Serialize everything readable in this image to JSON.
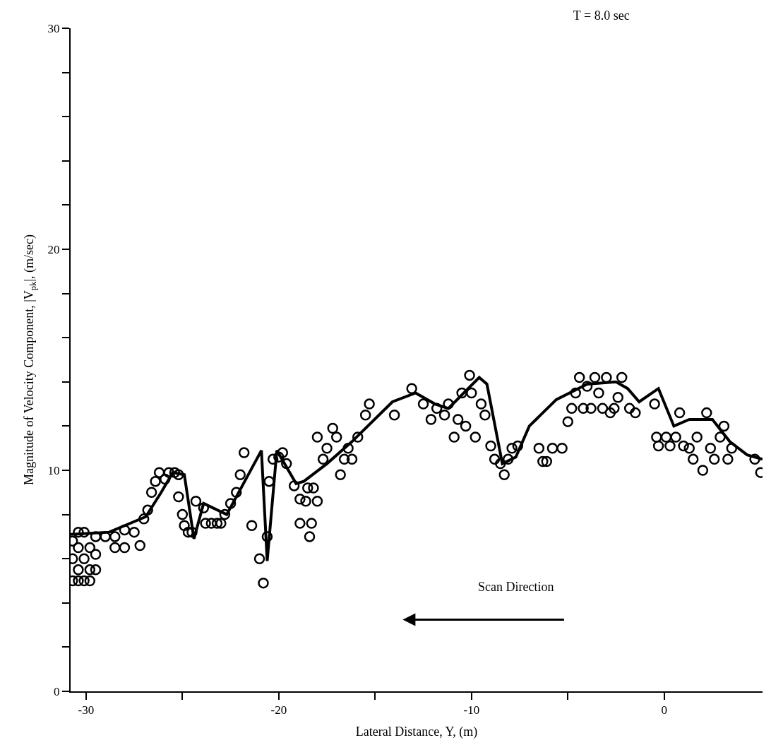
{
  "chart_data": {
    "type": "scatter",
    "title": "T = 8.0 sec",
    "xlabel": "Lateral Distance, Y, (m)",
    "ylabel": "Magnitude of Velocity Component, |V$_{pk}$|, (m/sec)",
    "annotations": [
      "Scan Direction"
    ],
    "xlim": [
      -30.8,
      5.1
    ],
    "ylim": [
      0,
      30
    ],
    "xticks": [
      -30,
      {
        "value": -25,
        "label": null
      },
      -20,
      {
        "value": -15,
        "label": null
      },
      -10,
      {
        "value": -5,
        "label": null
      },
      0
    ],
    "yticks": [
      0,
      {
        "value": 2,
        "label": null
      },
      {
        "value": 4,
        "label": null
      },
      {
        "value": 6,
        "label": null
      },
      {
        "value": 8,
        "label": null
      },
      10,
      {
        "value": 12,
        "label": null
      },
      {
        "value": 14,
        "label": null
      },
      {
        "value": 16,
        "label": null
      },
      {
        "value": 18,
        "label": null
      },
      20,
      {
        "value": 22,
        "label": null
      },
      {
        "value": 24,
        "label": null
      },
      {
        "value": 26,
        "label": null
      },
      {
        "value": 28,
        "label": null
      },
      30
    ],
    "legend": false,
    "series": [
      {
        "marker": "circle",
        "color": "#000000",
        "x": [
          -30.7,
          -30.7,
          -30.7,
          -30.4,
          -30.4,
          -30.4,
          -30.4,
          -30.1,
          -30.1,
          -30.1,
          -29.8,
          -29.8,
          -29.8,
          -29.5,
          -29.5,
          -29.5,
          -29.0,
          -28.5,
          -28.5,
          -28.0,
          -28.0,
          -27.5,
          -27.2,
          -27.0,
          -26.8,
          -26.6,
          -26.4,
          -26.2,
          -25.9,
          -25.7,
          -25.4,
          -25.2,
          -25.2,
          -25.0,
          -24.9,
          -24.7,
          -24.5,
          -24.3,
          -23.9,
          -23.8,
          -23.5,
          -23.2,
          -23.0,
          -22.8,
          -22.5,
          -22.2,
          -22.0,
          -21.8,
          -21.4,
          -21.0,
          -20.8,
          -20.6,
          -20.5,
          -20.3,
          -20.0,
          -19.8,
          -19.6,
          -19.2,
          -18.9,
          -18.9,
          -18.6,
          -18.5,
          -18.4,
          -18.3,
          -18.2,
          -18.0,
          -18.0,
          -17.7,
          -17.5,
          -17.2,
          -17.0,
          -16.8,
          -16.6,
          -16.4,
          -16.2,
          -15.9,
          -15.5,
          -15.3,
          -14.0,
          -13.1,
          -12.5,
          -12.1,
          -11.8,
          -11.4,
          -11.2,
          -10.9,
          -10.7,
          -10.5,
          -10.3,
          -10.1,
          -10.0,
          -9.8,
          -9.5,
          -9.3,
          -9.0,
          -8.8,
          -8.5,
          -8.3,
          -8.1,
          -7.9,
          -7.6,
          -6.5,
          -6.3,
          -6.1,
          -5.8,
          -5.3,
          -5.0,
          -4.8,
          -4.6,
          -4.4,
          -4.2,
          -4.0,
          -3.8,
          -3.6,
          -3.4,
          -3.2,
          -3.0,
          -2.8,
          -2.6,
          -2.4,
          -2.2,
          -1.8,
          -1.5,
          -0.5,
          -0.4,
          -0.3,
          0.1,
          0.3,
          0.6,
          0.8,
          1.0,
          1.3,
          1.5,
          1.7,
          2.0,
          2.2,
          2.4,
          2.6,
          2.9,
          3.1,
          3.3,
          3.5,
          4.7,
          5.0
        ],
        "values": [
          5.0,
          6.0,
          6.8,
          5.0,
          5.5,
          6.5,
          7.2,
          5.0,
          6.0,
          7.2,
          5.0,
          5.5,
          6.5,
          5.5,
          6.2,
          7.0,
          7.0,
          7.0,
          6.5,
          6.5,
          7.3,
          7.2,
          6.6,
          7.8,
          8.2,
          9.0,
          9.5,
          9.9,
          9.6,
          9.9,
          9.9,
          9.8,
          8.8,
          8.0,
          7.5,
          7.2,
          7.2,
          8.6,
          8.3,
          7.6,
          7.6,
          7.6,
          7.6,
          8.0,
          8.5,
          9.0,
          9.8,
          10.8,
          7.5,
          6.0,
          4.9,
          7.0,
          9.5,
          10.5,
          10.6,
          10.8,
          10.3,
          9.3,
          8.7,
          7.6,
          8.6,
          9.2,
          7.0,
          7.6,
          9.2,
          8.6,
          11.5,
          10.5,
          11.0,
          11.9,
          11.5,
          9.8,
          10.5,
          11.0,
          10.5,
          11.5,
          12.5,
          13.0,
          12.5,
          13.7,
          13.0,
          12.3,
          12.8,
          12.5,
          13.0,
          11.5,
          12.3,
          13.5,
          12.0,
          14.3,
          13.5,
          11.5,
          13.0,
          12.5,
          11.1,
          10.5,
          10.3,
          9.8,
          10.5,
          11.0,
          11.1,
          11.0,
          10.4,
          10.4,
          11.0,
          11.0,
          12.2,
          12.8,
          13.5,
          14.2,
          12.8,
          13.8,
          12.8,
          14.2,
          13.5,
          12.8,
          14.2,
          12.6,
          12.8,
          13.3,
          14.2,
          12.8,
          12.6,
          13.0,
          11.5,
          11.1,
          11.5,
          11.1,
          11.5,
          12.6,
          11.1,
          11.0,
          10.5,
          11.5,
          10.0,
          12.6,
          11.0,
          10.5,
          11.5,
          12.0,
          10.5,
          11.0,
          10.5,
          9.9
        ]
      },
      {
        "type": "line",
        "marker": "none",
        "line_style": "solid",
        "color": "#000000",
        "x": [
          -30.8,
          -28.8,
          -26.9,
          -26.1,
          -25.5,
          -24.9,
          -24.4,
          -23.9,
          -22.7,
          -20.9,
          -20.6,
          -20.1,
          -19.1,
          -18.7,
          -17.5,
          -16.2,
          -14.1,
          -12.9,
          -11.9,
          -11.2,
          -9.6,
          -9.2,
          -8.4,
          -7.7,
          -7.0,
          -5.6,
          -4.0,
          -2.5,
          -1.9,
          -1.3,
          -0.3,
          0.5,
          1.3,
          2.5,
          3.4,
          4.3,
          5.1
        ],
        "values": [
          7.1,
          7.2,
          7.9,
          9.0,
          9.9,
          9.8,
          6.9,
          8.5,
          8.0,
          10.9,
          5.9,
          10.9,
          9.4,
          9.5,
          10.3,
          11.3,
          13.1,
          13.5,
          13.0,
          12.8,
          14.2,
          13.9,
          10.3,
          10.6,
          12.0,
          13.2,
          13.9,
          14.0,
          13.7,
          13.1,
          13.7,
          12.0,
          12.3,
          12.3,
          11.3,
          10.7,
          10.5
        ]
      }
    ]
  }
}
